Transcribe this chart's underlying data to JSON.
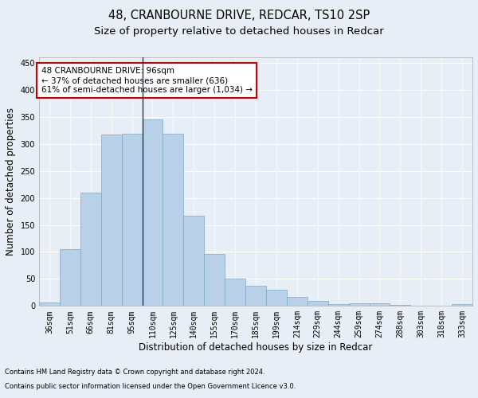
{
  "title1": "48, CRANBOURNE DRIVE, REDCAR, TS10 2SP",
  "title2": "Size of property relative to detached houses in Redcar",
  "xlabel": "Distribution of detached houses by size in Redcar",
  "ylabel": "Number of detached properties",
  "categories": [
    "36sqm",
    "51sqm",
    "66sqm",
    "81sqm",
    "95sqm",
    "110sqm",
    "125sqm",
    "140sqm",
    "155sqm",
    "170sqm",
    "185sqm",
    "199sqm",
    "214sqm",
    "229sqm",
    "244sqm",
    "259sqm",
    "274sqm",
    "288sqm",
    "303sqm",
    "318sqm",
    "333sqm"
  ],
  "values": [
    6,
    105,
    210,
    317,
    319,
    345,
    319,
    167,
    97,
    50,
    37,
    30,
    17,
    10,
    4,
    5,
    5,
    2,
    1,
    1,
    3
  ],
  "bar_color": "#b8d0e8",
  "bar_edge_color": "#7aaac8",
  "vline_bar_index": 5,
  "vline_color": "#1a3a5c",
  "annotation_text": "48 CRANBOURNE DRIVE: 96sqm\n← 37% of detached houses are smaller (636)\n61% of semi-detached houses are larger (1,034) →",
  "annotation_box_facecolor": "#ffffff",
  "annotation_box_edgecolor": "#cc0000",
  "ylim": [
    0,
    460
  ],
  "yticks": [
    0,
    50,
    100,
    150,
    200,
    250,
    300,
    350,
    400,
    450
  ],
  "footer1": "Contains HM Land Registry data © Crown copyright and database right 2024.",
  "footer2": "Contains public sector information licensed under the Open Government Licence v3.0.",
  "bg_color": "#e8eef5",
  "plot_bg_color": "#e8eef5",
  "grid_color": "#ffffff",
  "title1_fontsize": 10.5,
  "title2_fontsize": 9.5,
  "xlabel_fontsize": 8.5,
  "ylabel_fontsize": 8.5,
  "tick_fontsize": 7,
  "footer_fontsize": 6.0,
  "annot_fontsize": 7.5
}
